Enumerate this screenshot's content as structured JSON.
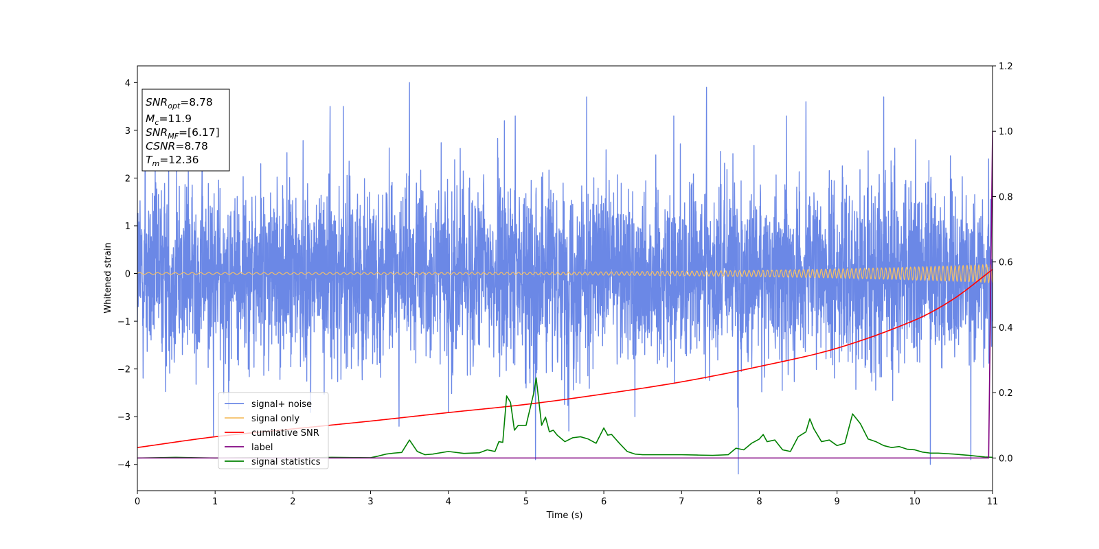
{
  "chart_data": {
    "type": "line",
    "xlabel": "Time (s)",
    "ylabel": "Whitened strain",
    "xlim": [
      0,
      11
    ],
    "ylim": [
      -4.55,
      4.35
    ],
    "ylim_right": [
      -0.1,
      1.2
    ],
    "x_ticks": [
      0,
      1,
      2,
      3,
      4,
      5,
      6,
      7,
      8,
      9,
      10,
      11
    ],
    "y_ticks": [
      -4,
      -3,
      -2,
      -1,
      0,
      1,
      2,
      3,
      4
    ],
    "y_ticks_right": [
      0.0,
      0.2,
      0.4,
      0.6,
      0.8,
      1.0,
      1.2
    ],
    "grid": false,
    "legend_placement": "lower-left",
    "series": [
      {
        "name": "signal+ noise",
        "axis": "left",
        "color": "#6b88e6",
        "sample_rate_hz": 380,
        "noise_sigma": 0.95,
        "peaks": [
          [
            0.1,
            3.7
          ],
          [
            0.98,
            -3.4
          ],
          [
            2.48,
            3.5
          ],
          [
            2.65,
            3.5
          ],
          [
            3.5,
            4.0
          ],
          [
            4.0,
            -2.9
          ],
          [
            4.72,
            3.2
          ],
          [
            4.86,
            3.3
          ],
          [
            5.12,
            -3.9
          ],
          [
            5.55,
            -3.3
          ],
          [
            5.78,
            3.7
          ],
          [
            6.4,
            -3.0
          ],
          [
            6.9,
            3.3
          ],
          [
            7.32,
            3.9
          ],
          [
            7.73,
            -4.2
          ],
          [
            7.72,
            -2.8
          ],
          [
            8.35,
            3.3
          ],
          [
            8.6,
            3.6
          ],
          [
            9.6,
            3.7
          ],
          [
            10.2,
            -4.0
          ],
          [
            10.72,
            -3.9
          ],
          [
            10.95,
            2.4
          ]
        ]
      },
      {
        "name": "signal only",
        "axis": "left",
        "color": "#f5c066",
        "chirp_f0_hz": 8.5,
        "chirp_f1_hz": 20,
        "amp_start": 0.02,
        "amp_end": 0.19
      },
      {
        "name": "cumilative SNR",
        "axis": "right",
        "color": "#ff0000",
        "x": [
          0,
          1,
          2,
          3,
          4,
          5,
          6,
          7,
          8,
          9,
          10,
          10.5,
          11
        ],
        "y": [
          0.032,
          0.065,
          0.089,
          0.113,
          0.139,
          0.164,
          0.196,
          0.233,
          0.28,
          0.336,
          0.422,
          0.487,
          0.577
        ]
      },
      {
        "name": "label",
        "axis": "right",
        "color": "#800080",
        "x": [
          0,
          10.95,
          11.0
        ],
        "y": [
          0.0,
          0.0,
          1.0
        ]
      },
      {
        "name": "signal statistics",
        "axis": "right",
        "color": "#008000",
        "x": [
          0,
          0.5,
          1,
          1.5,
          2,
          2.5,
          3,
          3.1,
          3.2,
          3.3,
          3.4,
          3.5,
          3.6,
          3.7,
          3.8,
          4,
          4.2,
          4.4,
          4.5,
          4.6,
          4.65,
          4.7,
          4.75,
          4.8,
          4.85,
          4.9,
          5.0,
          5.05,
          5.1,
          5.13,
          5.2,
          5.25,
          5.3,
          5.35,
          5.4,
          5.5,
          5.6,
          5.7,
          5.8,
          5.9,
          6.0,
          6.05,
          6.1,
          6.2,
          6.3,
          6.4,
          6.5,
          6.6,
          6.8,
          7,
          7.2,
          7.4,
          7.6,
          7.7,
          7.8,
          7.9,
          8.0,
          8.05,
          8.1,
          8.2,
          8.3,
          8.4,
          8.5,
          8.6,
          8.65,
          8.7,
          8.8,
          8.9,
          9.0,
          9.1,
          9.2,
          9.3,
          9.4,
          9.5,
          9.6,
          9.7,
          9.8,
          9.9,
          10.0,
          10.1,
          10.2,
          10.3,
          10.5,
          10.7,
          10.9,
          11
        ],
        "y": [
          0.0,
          0.002,
          0.0,
          0.001,
          0.0,
          0.002,
          0.001,
          0.006,
          0.012,
          0.015,
          0.017,
          0.055,
          0.02,
          0.01,
          0.012,
          0.02,
          0.014,
          0.016,
          0.025,
          0.02,
          0.05,
          0.048,
          0.19,
          0.17,
          0.085,
          0.1,
          0.1,
          0.15,
          0.2,
          0.245,
          0.1,
          0.125,
          0.08,
          0.085,
          0.07,
          0.05,
          0.062,
          0.065,
          0.058,
          0.045,
          0.092,
          0.07,
          0.072,
          0.045,
          0.02,
          0.012,
          0.01,
          0.01,
          0.01,
          0.01,
          0.009,
          0.008,
          0.01,
          0.03,
          0.025,
          0.045,
          0.058,
          0.072,
          0.05,
          0.055,
          0.025,
          0.02,
          0.065,
          0.08,
          0.12,
          0.09,
          0.05,
          0.055,
          0.038,
          0.045,
          0.135,
          0.105,
          0.058,
          0.05,
          0.038,
          0.032,
          0.035,
          0.027,
          0.025,
          0.018,
          0.015,
          0.015,
          0.012,
          0.008,
          0.003,
          0.002
        ]
      }
    ],
    "annotation": {
      "lines": [
        {
          "var": "SNR",
          "sub": "opt",
          "value": "=8.78"
        },
        {
          "var": "M",
          "sub": "c",
          "value": "=11.9"
        },
        {
          "var": "SNR",
          "sub": "MF",
          "value": "=[6.17]"
        },
        {
          "var": "CSNR",
          "sub": "",
          "value": "=8.78"
        },
        {
          "var": "T",
          "sub": "m",
          "value": "=12.36"
        }
      ]
    }
  }
}
